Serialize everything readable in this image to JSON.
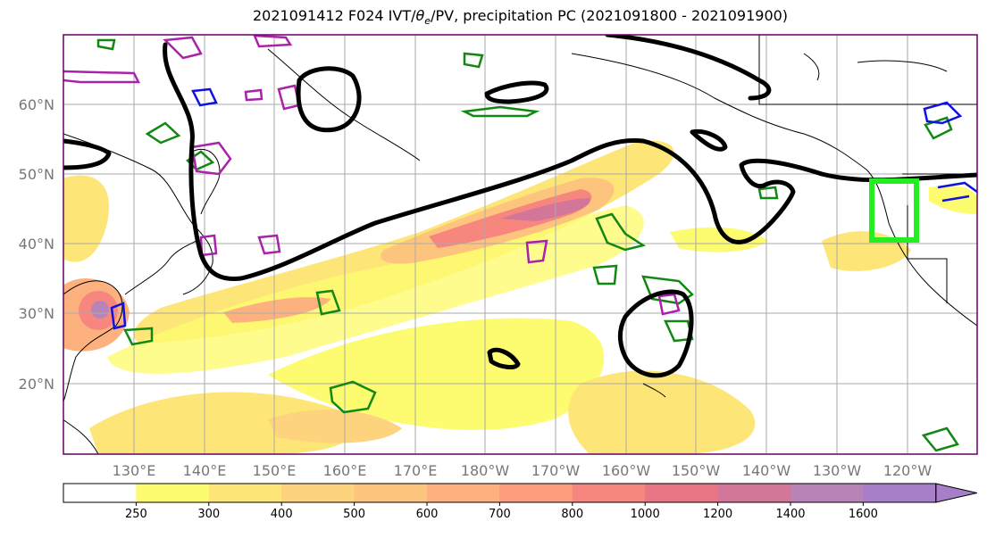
{
  "title": {
    "before": "2021091412 F024 IVT/",
    "theta": "θ",
    "sub": "e",
    "after": "/PV, precipitation PC (2021091800 - 2021091900)"
  },
  "map": {
    "lat_ticks": [
      "60°N",
      "50°N",
      "40°N",
      "30°N",
      "20°N"
    ],
    "lon_ticks": [
      "130°E",
      "140°E",
      "150°E",
      "160°E",
      "170°E",
      "180°W",
      "170°W",
      "160°W",
      "150°W",
      "140°W",
      "130°W",
      "120°W"
    ],
    "target_box_color": "#22ee22",
    "pv_contour_color": "#000000",
    "theta_e_colors": [
      "#118811",
      "#aa22aa",
      "#1111dd"
    ]
  },
  "colorbar": {
    "levels": [
      "250",
      "300",
      "400",
      "500",
      "600",
      "700",
      "800",
      "1000",
      "1200",
      "1400",
      "1600"
    ],
    "colors": [
      "#ffffff",
      "#fdfb70",
      "#fde677",
      "#fdd37d",
      "#fdc47e",
      "#fdb17f",
      "#fd9c7f",
      "#f7877e",
      "#e87684",
      "#d27799",
      "#b884b7",
      "#a77ec8"
    ]
  }
}
